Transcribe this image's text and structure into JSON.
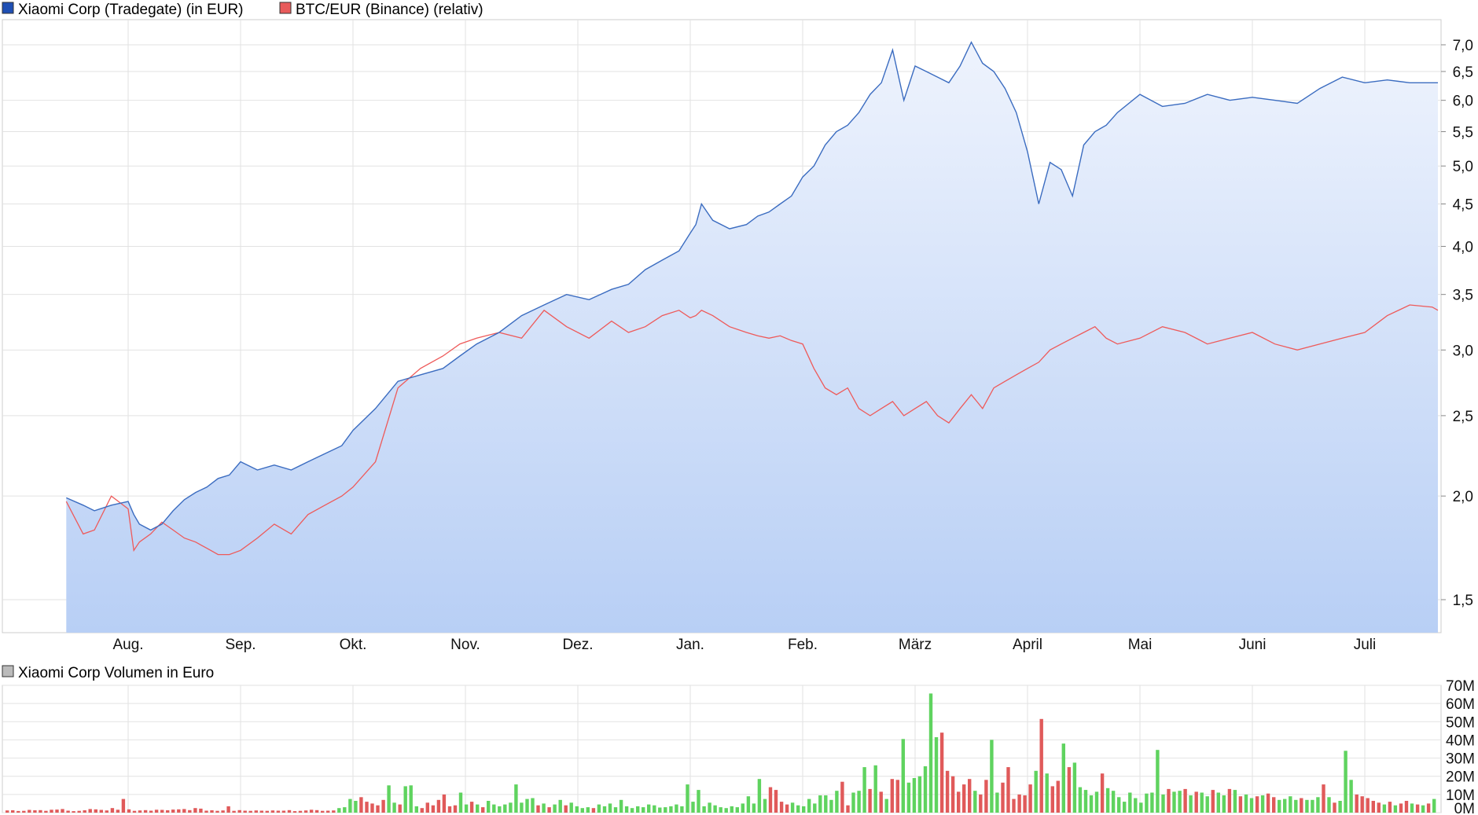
{
  "legend": {
    "series1": {
      "label": "Xiaomi Corp (Tradegate) (in EUR)",
      "color": "#1f4fb4"
    },
    "series2": {
      "label": "BTC/EUR (Binance) (relativ)",
      "color": "#e85b5b"
    },
    "volume": {
      "label": "Xiaomi Corp Volumen in Euro",
      "color": "#bbbbbb"
    }
  },
  "colors": {
    "price_line": "#3b6cc0",
    "price_fill_top": "#eef3fd",
    "price_fill_bottom": "#b8cff5",
    "btc_line": "#ee5a5a",
    "vol_up": "#5fd35f",
    "vol_down": "#e05a5a",
    "grid": "#e2e2e2"
  },
  "chart_data": [
    {
      "type": "line",
      "title": "",
      "x_unit": "month",
      "x_ticks": [
        "Aug.",
        "Sep.",
        "Okt.",
        "Nov.",
        "Dez.",
        "Jan.",
        "Feb.",
        "März",
        "April",
        "Mai",
        "Juni",
        "Juli"
      ],
      "y_scale": "log",
      "y_ticks": [
        "1,5",
        "2,0",
        "2,5",
        "3,0",
        "3,5",
        "4,0",
        "4,5",
        "5,0",
        "5,5",
        "6,0",
        "6,5",
        "7,0"
      ],
      "ylim": [
        1.35,
        7.6
      ],
      "grid": true,
      "legend_position": "top-left",
      "series": [
        {
          "name": "Xiaomi Corp (Tradegate) (in EUR)",
          "x_months": [
            -0.55,
            -0.4,
            -0.3,
            -0.15,
            0.0,
            0.05,
            0.1,
            0.2,
            0.3,
            0.4,
            0.5,
            0.6,
            0.7,
            0.8,
            0.9,
            1.0,
            1.15,
            1.3,
            1.45,
            1.6,
            1.75,
            1.9,
            2.0,
            2.2,
            2.4,
            2.6,
            2.8,
            2.95,
            3.1,
            3.3,
            3.5,
            3.7,
            3.9,
            4.1,
            4.3,
            4.45,
            4.6,
            4.75,
            4.9,
            5.0,
            5.05,
            5.1,
            5.2,
            5.35,
            5.5,
            5.6,
            5.7,
            5.8,
            5.9,
            6.0,
            6.1,
            6.2,
            6.3,
            6.4,
            6.5,
            6.6,
            6.7,
            6.8,
            6.9,
            7.0,
            7.1,
            7.2,
            7.3,
            7.4,
            7.5,
            7.55,
            7.6,
            7.7,
            7.8,
            7.9,
            8.0,
            8.1,
            8.2,
            8.3,
            8.4,
            8.5,
            8.6,
            8.7,
            8.8,
            9.0,
            9.2,
            9.4,
            9.6,
            9.8,
            10.0,
            10.2,
            10.4,
            10.6,
            10.8,
            11.0,
            11.2,
            11.4,
            11.6,
            11.7
          ],
          "values": [
            1.99,
            1.95,
            1.92,
            1.95,
            1.97,
            1.9,
            1.85,
            1.82,
            1.85,
            1.92,
            1.98,
            2.02,
            2.05,
            2.1,
            2.12,
            2.2,
            2.15,
            2.18,
            2.15,
            2.2,
            2.25,
            2.3,
            2.4,
            2.55,
            2.75,
            2.8,
            2.85,
            2.95,
            3.05,
            3.15,
            3.3,
            3.4,
            3.5,
            3.45,
            3.55,
            3.6,
            3.75,
            3.85,
            3.95,
            4.15,
            4.25,
            4.5,
            4.3,
            4.2,
            4.25,
            4.35,
            4.4,
            4.5,
            4.6,
            4.85,
            5.0,
            5.3,
            5.5,
            5.6,
            5.8,
            6.1,
            6.3,
            6.9,
            6.0,
            6.6,
            6.5,
            6.4,
            6.3,
            6.6,
            7.05,
            6.85,
            6.65,
            6.5,
            6.2,
            5.8,
            5.2,
            4.5,
            5.05,
            4.95,
            4.6,
            5.3,
            5.5,
            5.6,
            5.8,
            6.1,
            5.9,
            5.95,
            6.1,
            6.0,
            6.05,
            6.0,
            5.95,
            6.2,
            6.4,
            6.3,
            6.35,
            6.3,
            6.3,
            6.3
          ]
        },
        {
          "name": "BTC/EUR (Binance) (relativ)",
          "x_months": [
            -0.55,
            -0.4,
            -0.3,
            -0.15,
            0.0,
            0.05,
            0.1,
            0.2,
            0.3,
            0.4,
            0.5,
            0.6,
            0.7,
            0.8,
            0.9,
            1.0,
            1.15,
            1.3,
            1.45,
            1.6,
            1.75,
            1.9,
            2.0,
            2.2,
            2.4,
            2.6,
            2.8,
            2.95,
            3.1,
            3.3,
            3.5,
            3.7,
            3.9,
            4.1,
            4.3,
            4.45,
            4.6,
            4.75,
            4.9,
            5.0,
            5.05,
            5.1,
            5.2,
            5.35,
            5.5,
            5.6,
            5.7,
            5.8,
            5.9,
            6.0,
            6.1,
            6.2,
            6.3,
            6.4,
            6.5,
            6.6,
            6.7,
            6.8,
            6.9,
            7.0,
            7.1,
            7.2,
            7.3,
            7.4,
            7.5,
            7.55,
            7.6,
            7.7,
            7.8,
            7.9,
            8.0,
            8.1,
            8.2,
            8.3,
            8.4,
            8.5,
            8.6,
            8.7,
            8.8,
            9.0,
            9.2,
            9.4,
            9.6,
            9.8,
            10.0,
            10.2,
            10.4,
            10.6,
            10.8,
            11.0,
            11.2,
            11.4,
            11.6,
            11.7
          ],
          "values": [
            1.97,
            1.8,
            1.82,
            2.0,
            1.93,
            1.72,
            1.76,
            1.8,
            1.86,
            1.82,
            1.78,
            1.76,
            1.73,
            1.7,
            1.7,
            1.72,
            1.78,
            1.85,
            1.8,
            1.9,
            1.95,
            2.0,
            2.05,
            2.2,
            2.7,
            2.85,
            2.95,
            3.05,
            3.1,
            3.15,
            3.1,
            3.35,
            3.2,
            3.1,
            3.25,
            3.15,
            3.2,
            3.3,
            3.35,
            3.28,
            3.3,
            3.35,
            3.3,
            3.2,
            3.15,
            3.12,
            3.1,
            3.12,
            3.08,
            3.05,
            2.85,
            2.7,
            2.65,
            2.7,
            2.55,
            2.5,
            2.55,
            2.6,
            2.5,
            2.55,
            2.6,
            2.5,
            2.45,
            2.55,
            2.65,
            2.6,
            2.55,
            2.7,
            2.75,
            2.8,
            2.85,
            2.9,
            3.0,
            3.05,
            3.1,
            3.15,
            3.2,
            3.1,
            3.05,
            3.1,
            3.2,
            3.15,
            3.05,
            3.1,
            3.15,
            3.05,
            3.0,
            3.05,
            3.1,
            3.15,
            3.3,
            3.4,
            3.38,
            3.35
          ]
        }
      ]
    },
    {
      "type": "bar",
      "title": "Xiaomi Corp Volumen in Euro",
      "y_ticks": [
        "0M",
        "10M",
        "20M",
        "30M",
        "40M",
        "50M",
        "60M",
        "70M"
      ],
      "ylim": [
        0,
        70
      ],
      "y_unit": "M EUR",
      "grid": true,
      "series": [
        {
          "name": "Xiaomi Corp Volumen in Euro",
          "values": [
            1.2,
            1.3,
            0.9,
            1.0,
            1.5,
            1.3,
            1.4,
            1.0,
            1.6,
            1.7,
            2.0,
            1.1,
            0.8,
            1.0,
            1.3,
            2.0,
            1.8,
            1.5,
            1.2,
            2.5,
            1.6,
            7.5,
            1.8,
            1.0,
            1.2,
            1.4,
            1.1,
            1.6,
            1.5,
            1.3,
            1.7,
            1.8,
            2.0,
            1.4,
            2.5,
            2.2,
            1.1,
            1.3,
            1.0,
            1.2,
            3.5,
            1.0,
            1.4,
            1.1,
            1.0,
            1.2,
            1.1,
            1.0,
            1.2,
            1.1,
            1.1,
            1.4,
            0.8,
            1.0,
            1.2,
            1.6,
            1.4,
            1.0,
            1.1,
            1.2,
            2.5,
            3.0,
            7.5,
            6.5,
            8.5,
            6.0,
            5.0,
            4.0,
            7.0,
            15.0,
            5.5,
            4.5,
            14.5,
            15.0,
            3.5,
            2.5,
            5.5,
            4.0,
            7.0,
            10.0,
            3.5,
            4.0,
            11.0,
            4.5,
            6.0,
            4.5,
            3.0,
            6.5,
            4.5,
            3.5,
            4.5,
            5.5,
            15.5,
            5.5,
            7.5,
            8.0,
            4.0,
            5.0,
            3.0,
            4.5,
            7.0,
            4.0,
            5.5,
            3.5,
            2.5,
            3.0,
            2.5,
            4.5,
            3.5,
            5.0,
            3.0,
            7.0,
            3.5,
            2.5,
            3.5,
            3.0,
            4.5,
            4.0,
            2.8,
            3.0,
            3.5,
            4.5,
            3.5,
            15.5,
            6.0,
            12.5,
            3.5,
            5.5,
            4.0,
            3.0,
            2.5,
            3.5,
            3.0,
            5.0,
            9.0,
            5.0,
            18.5,
            7.5,
            14.0,
            12.5,
            6.0,
            4.5,
            5.5,
            4.0,
            3.5,
            7.5,
            5.0,
            9.5,
            9.5,
            7.0,
            12.0,
            17.0,
            4.0,
            11.0,
            12.0,
            25.0,
            13.0,
            26.0,
            11.5,
            7.5,
            18.5,
            18.0,
            40.5,
            16.5,
            19.0,
            20.0,
            25.5,
            65.5,
            41.5,
            44.0,
            23.0,
            20.0,
            11.5,
            15.5,
            18.5,
            12.0,
            10.0,
            18.0,
            40.0,
            11.0,
            16.5,
            25.0,
            7.5,
            10.0,
            9.5,
            15.5,
            23.0,
            51.5,
            21.5,
            14.5,
            17.5,
            38.0,
            25.0,
            27.5,
            14.0,
            12.5,
            9.5,
            11.5,
            21.5,
            13.5,
            12.0,
            8.5,
            6.0,
            11.0,
            8.0,
            5.5,
            10.5,
            11.0,
            34.5,
            10.0,
            13.0,
            11.5,
            12.0,
            13.0,
            9.5,
            11.5,
            11.0,
            9.0,
            12.5,
            11.0,
            9.5,
            13.0,
            12.5,
            9.0,
            10.0,
            8.0,
            9.0,
            9.5,
            10.5,
            8.5,
            7.0,
            7.5,
            9.0,
            7.0,
            8.0,
            7.0,
            7.0,
            8.5,
            15.5,
            8.5,
            5.5,
            6.5,
            34.0,
            18.0,
            10.0,
            9.0,
            8.0,
            6.5,
            5.5,
            4.5,
            6.0,
            4.0,
            5.0,
            6.5,
            5.0,
            4.5,
            4.0,
            5.0,
            7.5
          ],
          "direction": [
            "d",
            "d",
            "d",
            "d",
            "d",
            "d",
            "d",
            "d",
            "d",
            "d",
            "d",
            "d",
            "d",
            "d",
            "d",
            "d",
            "d",
            "d",
            "d",
            "d",
            "d",
            "d",
            "d",
            "d",
            "d",
            "d",
            "d",
            "d",
            "d",
            "d",
            "d",
            "d",
            "d",
            "d",
            "d",
            "d",
            "d",
            "d",
            "d",
            "d",
            "d",
            "d",
            "d",
            "d",
            "d",
            "d",
            "d",
            "d",
            "d",
            "d",
            "d",
            "d",
            "d",
            "d",
            "d",
            "d",
            "d",
            "d",
            "d",
            "d",
            "u",
            "u",
            "u",
            "u",
            "d",
            "d",
            "d",
            "d",
            "d",
            "u",
            "u",
            "d",
            "u",
            "u",
            "u",
            "d",
            "d",
            "d",
            "d",
            "d",
            "d",
            "d",
            "u",
            "u",
            "d",
            "u",
            "d",
            "u",
            "u",
            "u",
            "u",
            "u",
            "u",
            "u",
            "u",
            "u",
            "d",
            "u",
            "d",
            "u",
            "u",
            "d",
            "u",
            "u",
            "u",
            "u",
            "d",
            "u",
            "u",
            "u",
            "u",
            "u",
            "u",
            "u",
            "u",
            "u",
            "u",
            "u",
            "u",
            "u",
            "u",
            "u",
            "u",
            "u",
            "u",
            "u",
            "u",
            "u",
            "u",
            "u",
            "u",
            "u",
            "u",
            "u",
            "u",
            "u",
            "u",
            "u",
            "d",
            "d",
            "d",
            "d",
            "u",
            "u",
            "u",
            "u",
            "u",
            "u",
            "u",
            "u",
            "u",
            "d",
            "d",
            "u",
            "u",
            "u",
            "d",
            "u",
            "d",
            "u",
            "d",
            "d",
            "u",
            "u",
            "u",
            "u",
            "u",
            "u",
            "u",
            "d",
            "d",
            "d",
            "d",
            "d",
            "d",
            "u",
            "d",
            "d",
            "u",
            "u",
            "d",
            "d",
            "d",
            "d",
            "d",
            "d",
            "u",
            "d",
            "u",
            "d",
            "d",
            "u",
            "d",
            "u",
            "u",
            "u",
            "u",
            "u",
            "d",
            "u",
            "u",
            "u",
            "u",
            "u",
            "u",
            "u",
            "u",
            "u",
            "u",
            "u",
            "d",
            "u",
            "u",
            "d",
            "u",
            "d",
            "u",
            "u",
            "d",
            "u",
            "u",
            "d",
            "u",
            "d",
            "u",
            "u",
            "d",
            "u",
            "d",
            "d",
            "u",
            "u",
            "u",
            "u",
            "d",
            "u",
            "u",
            "u",
            "d",
            "u",
            "d",
            "u",
            "u",
            "u",
            "d",
            "d",
            "d",
            "d",
            "d",
            "u",
            "d",
            "u",
            "d",
            "d",
            "u",
            "d",
            "u",
            "d",
            "u",
            "d",
            "d",
            "u",
            "u"
          ]
        }
      ]
    }
  ]
}
